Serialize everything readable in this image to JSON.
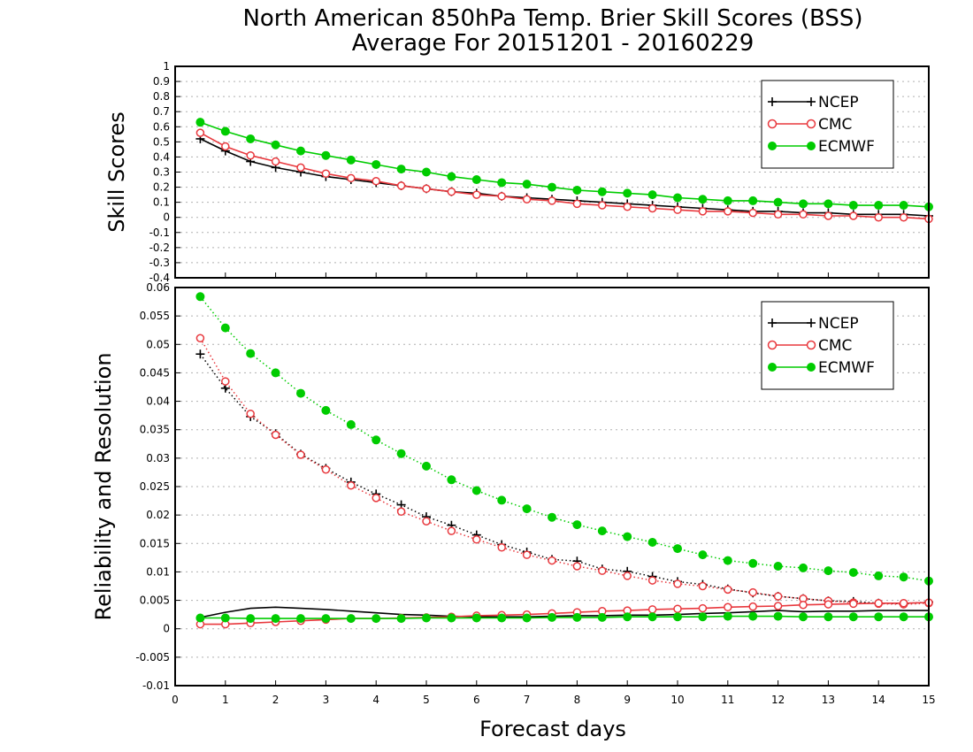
{
  "titles": {
    "line1": "North American 850hPa Temp. Brier Skill Scores (BSS)",
    "line2": "Average For 20151201 - 20160229"
  },
  "xaxis": {
    "label": "Forecast days",
    "ticks": [
      "0",
      "1",
      "2",
      "3",
      "4",
      "5",
      "6",
      "7",
      "8",
      "9",
      "10",
      "11",
      "12",
      "13",
      "14",
      "15"
    ]
  },
  "colors": {
    "NCEP": "#000000",
    "CMC": "#e8383d",
    "ECMWF": "#00cc00",
    "grid": "#b0b0b0"
  },
  "chart_data": [
    {
      "type": "line",
      "ylabel": "Skill Scores",
      "xlim": [
        0,
        15
      ],
      "ylim": [
        -0.4,
        1
      ],
      "yticks": [
        "-0.4",
        "-0.3",
        "-0.2",
        "-0.1",
        "0",
        "0.1",
        "0.2",
        "0.3",
        "0.4",
        "0.5",
        "0.6",
        "0.7",
        "0.8",
        "0.9",
        "1"
      ],
      "grid": true,
      "legend_position": "top-right",
      "x": [
        0.5,
        1,
        1.5,
        2,
        2.5,
        3,
        3.5,
        4,
        4.5,
        5,
        5.5,
        6,
        6.5,
        7,
        7.5,
        8,
        8.5,
        9,
        9.5,
        10,
        10.5,
        11,
        11.5,
        12,
        12.5,
        13,
        13.5,
        14,
        14.5,
        15
      ],
      "series": [
        {
          "name": "NCEP",
          "marker": "plus",
          "linestyle": "solid",
          "values": [
            0.52,
            0.44,
            0.37,
            0.33,
            0.3,
            0.27,
            0.25,
            0.23,
            0.21,
            0.19,
            0.17,
            0.16,
            0.14,
            0.13,
            0.12,
            0.11,
            0.1,
            0.09,
            0.08,
            0.07,
            0.06,
            0.05,
            0.04,
            0.04,
            0.03,
            0.03,
            0.02,
            0.02,
            0.02,
            0.01
          ]
        },
        {
          "name": "CMC",
          "marker": "open-circle",
          "linestyle": "solid",
          "values": [
            0.56,
            0.47,
            0.41,
            0.37,
            0.33,
            0.29,
            0.26,
            0.24,
            0.21,
            0.19,
            0.17,
            0.15,
            0.14,
            0.12,
            0.11,
            0.09,
            0.08,
            0.07,
            0.06,
            0.05,
            0.04,
            0.04,
            0.03,
            0.02,
            0.02,
            0.01,
            0.01,
            0.0,
            0.0,
            -0.01
          ]
        },
        {
          "name": "ECMWF",
          "marker": "filled-circle",
          "linestyle": "solid",
          "values": [
            0.63,
            0.57,
            0.52,
            0.48,
            0.44,
            0.41,
            0.38,
            0.35,
            0.32,
            0.3,
            0.27,
            0.25,
            0.23,
            0.22,
            0.2,
            0.18,
            0.17,
            0.16,
            0.15,
            0.13,
            0.12,
            0.11,
            0.11,
            0.1,
            0.09,
            0.09,
            0.08,
            0.08,
            0.08,
            0.07
          ]
        }
      ]
    },
    {
      "type": "line",
      "ylabel": "Reliability and Resolution",
      "xlim": [
        0,
        15
      ],
      "ylim": [
        -0.01,
        0.06
      ],
      "yticks": [
        "-0.01",
        "-0.005",
        "0",
        "0.005",
        "0.01",
        "0.015",
        "0.02",
        "0.025",
        "0.03",
        "0.035",
        "0.04",
        "0.045",
        "0.05",
        "0.055",
        "0.06"
      ],
      "grid": true,
      "legend_position": "top-right",
      "x": [
        0.5,
        1,
        1.5,
        2,
        2.5,
        3,
        3.5,
        4,
        4.5,
        5,
        5.5,
        6,
        6.5,
        7,
        7.5,
        8,
        8.5,
        9,
        9.5,
        10,
        10.5,
        11,
        11.5,
        12,
        12.5,
        13,
        13.5,
        14,
        14.5,
        15
      ],
      "series": [
        {
          "name": "NCEP",
          "component": "resolution",
          "marker": "plus",
          "linestyle": "dotted",
          "values": [
            0.0483,
            0.0423,
            0.0373,
            0.0343,
            0.0307,
            0.0282,
            0.0258,
            0.0237,
            0.0218,
            0.0197,
            0.0182,
            0.0165,
            0.0148,
            0.0135,
            0.0122,
            0.0119,
            0.0105,
            0.0101,
            0.0092,
            0.0083,
            0.0078,
            0.007,
            0.0063,
            0.0057,
            0.0053,
            0.0049,
            0.0048,
            0.0045,
            0.0044,
            0.0047
          ]
        },
        {
          "name": "CMC",
          "component": "resolution",
          "marker": "open-circle",
          "linestyle": "dotted",
          "values": [
            0.0511,
            0.0435,
            0.0378,
            0.0341,
            0.0306,
            0.028,
            0.0252,
            0.023,
            0.0206,
            0.0189,
            0.0172,
            0.0157,
            0.0143,
            0.013,
            0.012,
            0.011,
            0.0102,
            0.0093,
            0.0085,
            0.0079,
            0.0075,
            0.0069,
            0.0064,
            0.0057,
            0.0053,
            0.0049,
            0.0046,
            0.0044,
            0.0043,
            0.0045
          ]
        },
        {
          "name": "ECMWF",
          "component": "resolution",
          "marker": "filled-circle",
          "linestyle": "dotted",
          "values": [
            0.0584,
            0.0529,
            0.0484,
            0.045,
            0.0414,
            0.0384,
            0.0359,
            0.0332,
            0.0308,
            0.0286,
            0.0262,
            0.0243,
            0.0226,
            0.0211,
            0.0196,
            0.0183,
            0.0172,
            0.0162,
            0.0152,
            0.0141,
            0.013,
            0.012,
            0.0115,
            0.011,
            0.0107,
            0.0102,
            0.0099,
            0.0093,
            0.0091,
            0.0084
          ]
        },
        {
          "name": "NCEP",
          "component": "reliability",
          "marker": "none",
          "linestyle": "solid",
          "values": [
            0.002,
            0.0029,
            0.0036,
            0.0038,
            0.0036,
            0.0034,
            0.0031,
            0.0028,
            0.0025,
            0.0024,
            0.0022,
            0.0021,
            0.0021,
            0.0021,
            0.0022,
            0.0023,
            0.0023,
            0.0024,
            0.0024,
            0.0025,
            0.0027,
            0.0028,
            0.003,
            0.0032,
            0.003,
            0.0031,
            0.0031,
            0.0032,
            0.0032,
            0.0032
          ]
        },
        {
          "name": "CMC",
          "component": "reliability",
          "marker": "open-circle",
          "linestyle": "solid",
          "values": [
            0.0008,
            0.0008,
            0.001,
            0.0012,
            0.0014,
            0.0016,
            0.0018,
            0.0018,
            0.0019,
            0.002,
            0.0021,
            0.0023,
            0.0024,
            0.0025,
            0.0027,
            0.0029,
            0.0031,
            0.0032,
            0.0034,
            0.0035,
            0.0036,
            0.0038,
            0.0039,
            0.004,
            0.0042,
            0.0043,
            0.0044,
            0.0045,
            0.0045,
            0.0046
          ]
        },
        {
          "name": "ECMWF",
          "component": "reliability",
          "marker": "filled-circle",
          "linestyle": "solid",
          "values": [
            0.0019,
            0.0019,
            0.0018,
            0.0018,
            0.0018,
            0.0018,
            0.0018,
            0.0018,
            0.0018,
            0.0019,
            0.0019,
            0.0019,
            0.0019,
            0.0019,
            0.002,
            0.002,
            0.002,
            0.0021,
            0.0021,
            0.0021,
            0.0021,
            0.0022,
            0.0022,
            0.0022,
            0.0021,
            0.0021,
            0.0021,
            0.0021,
            0.0021,
            0.0021
          ]
        }
      ]
    }
  ]
}
